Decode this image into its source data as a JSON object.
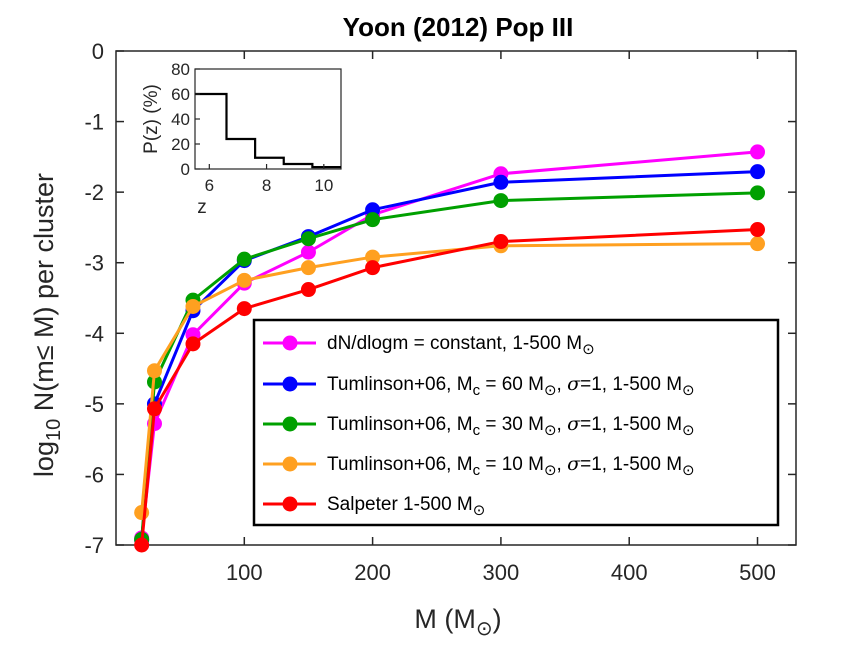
{
  "chart_data": {
    "type": "line",
    "title": "Yoon (2012) Pop III",
    "xlabel": {
      "main": "M (M",
      "sub": "⊙",
      "close": ")"
    },
    "ylabel": {
      "pre": "log",
      "sub": "10",
      "post": " N(m≤ M) per cluster"
    },
    "xlim": [
      0,
      530
    ],
    "ylim": [
      -7,
      0
    ],
    "xticks": [
      100,
      200,
      300,
      400,
      500
    ],
    "yticks": [
      0,
      -1,
      -2,
      -3,
      -4,
      -5,
      -6,
      -7
    ],
    "x": [
      20,
      30,
      60,
      100,
      150,
      200,
      300,
      500
    ],
    "series": [
      {
        "id": "constant",
        "color": "#ff00ff",
        "legend": [
          {
            "t": "dN/dlogm = constant, 1-500 M"
          },
          {
            "t": "⊙",
            "s": 1
          }
        ],
        "values": [
          -6.9,
          -5.28,
          -4.02,
          -3.29,
          -2.85,
          -2.32,
          -1.74,
          -1.43
        ]
      },
      {
        "id": "tumlinson60",
        "color": "#0000ff",
        "legend": [
          {
            "t": "Tumlinson+06, M"
          },
          {
            "t": "c",
            "s": 1
          },
          {
            "t": " = 60 M"
          },
          {
            "t": "⊙",
            "s": 1
          },
          {
            "t": ", "
          },
          {
            "t": "σ",
            "i": 1
          },
          {
            "t": "=1, 1-500 M"
          },
          {
            "t": "⊙",
            "s": 1
          }
        ],
        "values": [
          -6.93,
          -5.0,
          -3.68,
          -2.97,
          -2.63,
          -2.25,
          -1.86,
          -1.71
        ]
      },
      {
        "id": "tumlinson30",
        "color": "#00a000",
        "legend": [
          {
            "t": "Tumlinson+06, M"
          },
          {
            "t": "c",
            "s": 1
          },
          {
            "t": " = 30 M"
          },
          {
            "t": "⊙",
            "s": 1
          },
          {
            "t": ", "
          },
          {
            "t": "σ",
            "i": 1
          },
          {
            "t": "=1, 1-500 M"
          },
          {
            "t": "⊙",
            "s": 1
          }
        ],
        "values": [
          -6.92,
          -4.69,
          -3.53,
          -2.95,
          -2.66,
          -2.39,
          -2.12,
          -2.01
        ]
      },
      {
        "id": "tumlinson10",
        "color": "#ffa020",
        "legend": [
          {
            "t": "Tumlinson+06, M"
          },
          {
            "t": "c",
            "s": 1
          },
          {
            "t": " = 10 M"
          },
          {
            "t": "⊙",
            "s": 1
          },
          {
            "t": ", "
          },
          {
            "t": "σ",
            "i": 1
          },
          {
            "t": "=1, 1-500 M"
          },
          {
            "t": "⊙",
            "s": 1
          }
        ],
        "values": [
          -6.54,
          -4.53,
          -3.62,
          -3.25,
          -3.07,
          -2.92,
          -2.76,
          -2.73
        ]
      },
      {
        "id": "salpeter",
        "color": "#ff0000",
        "legend": [
          {
            "t": "Salpeter 1-500 M"
          },
          {
            "t": "⊙",
            "s": 1
          }
        ],
        "values": [
          -7.0,
          -5.07,
          -4.15,
          -3.65,
          -3.38,
          -3.07,
          -2.7,
          -2.53
        ]
      }
    ],
    "legend_position": "bottom-right",
    "inset": {
      "type": "step",
      "xlabel": "z",
      "ylabel": "P(z) (%)",
      "xlim": [
        5.5,
        10.6
      ],
      "ylim": [
        0,
        80
      ],
      "xticks": [
        6,
        8,
        10
      ],
      "yticks": [
        0,
        20,
        40,
        60,
        80
      ],
      "steps": [
        {
          "x0": 5.5,
          "x1": 6.6,
          "y": 60
        },
        {
          "x0": 6.6,
          "x1": 7.6,
          "y": 24
        },
        {
          "x0": 7.6,
          "x1": 8.6,
          "y": 9
        },
        {
          "x0": 8.6,
          "x1": 9.6,
          "y": 4
        },
        {
          "x0": 9.6,
          "x1": 10.6,
          "y": 1.5
        }
      ],
      "position": "top-left"
    }
  }
}
